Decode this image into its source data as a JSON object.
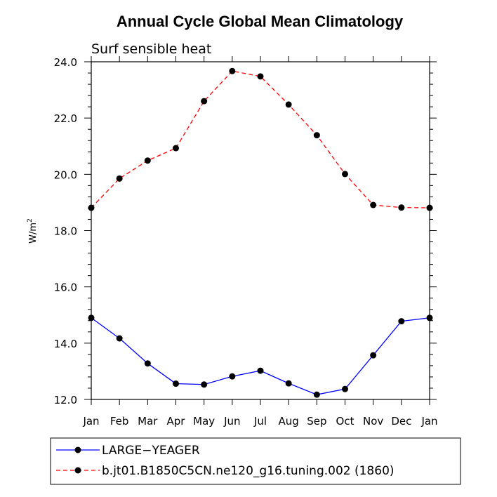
{
  "chart_data": {
    "type": "line",
    "title": "Annual Cycle Global Mean Climatology",
    "subtitle": "Surf sensible heat",
    "ylabel": "W/m",
    "ylabel_sup": "2",
    "ylim": [
      12.0,
      24.0
    ],
    "yticks": [
      "12.0",
      "14.0",
      "16.0",
      "18.0",
      "20.0",
      "22.0",
      "24.0"
    ],
    "ytick_values": [
      12,
      14,
      16,
      18,
      20,
      22,
      24
    ],
    "categories": [
      "Jan",
      "Feb",
      "Mar",
      "Apr",
      "May",
      "Jun",
      "Jul",
      "Aug",
      "Sep",
      "Oct",
      "Nov",
      "Dec",
      "Jan"
    ],
    "series": [
      {
        "name": "LARGE−YEAGER",
        "color": "#0000ff",
        "dash": "solid",
        "values": [
          14.9,
          14.17,
          13.28,
          12.56,
          12.53,
          12.82,
          13.02,
          12.57,
          12.17,
          12.37,
          13.57,
          14.78,
          14.9
        ]
      },
      {
        "name": "b.jt01.B1850C5CN.ne120_g16.tuning.002 (1860)",
        "color": "#ff0000",
        "dash": "dashed",
        "values": [
          18.81,
          19.85,
          20.49,
          20.93,
          22.6,
          23.67,
          23.48,
          22.48,
          21.39,
          20.01,
          18.91,
          18.82,
          18.81
        ]
      }
    ],
    "grid": false,
    "legend_position": "bottom-left"
  }
}
